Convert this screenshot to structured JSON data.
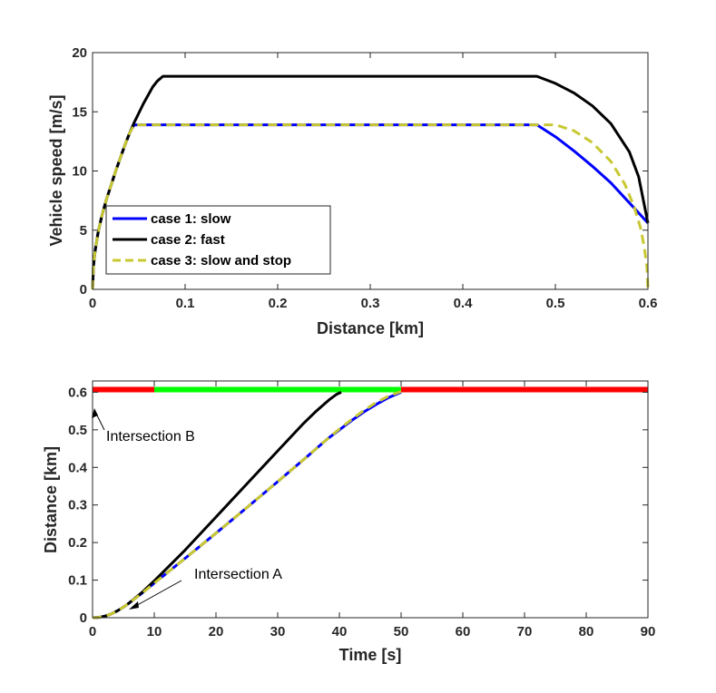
{
  "chart_data": [
    {
      "type": "line",
      "xlabel": "Distance [km]",
      "ylabel": "Vehicle speed [m/s]",
      "xlim": [
        0,
        0.6
      ],
      "ylim": [
        0,
        20
      ],
      "xticks": [
        0,
        0.1,
        0.2,
        0.3,
        0.4,
        0.5,
        0.6
      ],
      "xtick_labels": [
        "0",
        "0.1",
        "0.2",
        "0.3",
        "0.4",
        "0.5",
        "0.6"
      ],
      "yticks": [
        0,
        5,
        10,
        15,
        20
      ],
      "ytick_labels": [
        "0",
        "5",
        "10",
        "15",
        "20"
      ],
      "grid": false,
      "legend_position": "bottom-left",
      "series": [
        {
          "name": "case 1: slow",
          "color": "#0000ff",
          "style": "solid",
          "x": [
            0,
            0.001,
            0.003,
            0.006,
            0.01,
            0.015,
            0.02,
            0.025,
            0.03,
            0.035,
            0.04,
            0.045,
            0.05,
            0.1,
            0.2,
            0.3,
            0.4,
            0.48,
            0.5,
            0.52,
            0.54,
            0.56,
            0.58,
            0.6
          ],
          "y": [
            0,
            2.0,
            3.4,
            4.8,
            6.2,
            7.6,
            8.8,
            10.0,
            11.1,
            12.2,
            13.2,
            13.9,
            13.9,
            13.9,
            13.9,
            13.9,
            13.9,
            13.9,
            12.9,
            11.7,
            10.4,
            9.0,
            7.3,
            5.6
          ]
        },
        {
          "name": "case 2: fast",
          "color": "#000000",
          "style": "solid",
          "x": [
            0,
            0.001,
            0.003,
            0.006,
            0.01,
            0.015,
            0.02,
            0.025,
            0.03,
            0.035,
            0.04,
            0.045,
            0.05,
            0.055,
            0.06,
            0.065,
            0.07,
            0.076,
            0.1,
            0.2,
            0.3,
            0.4,
            0.48,
            0.5,
            0.52,
            0.54,
            0.56,
            0.58,
            0.59,
            0.6
          ],
          "y": [
            0,
            2.0,
            3.4,
            4.8,
            6.2,
            7.6,
            8.8,
            10.0,
            11.1,
            12.2,
            13.2,
            14.1,
            14.9,
            15.7,
            16.4,
            17.1,
            17.6,
            18,
            18,
            18,
            18,
            18,
            18,
            17.4,
            16.6,
            15.5,
            14.0,
            11.6,
            9.5,
            5.6
          ]
        },
        {
          "name": "case 3: slow and stop",
          "color": "#c8c832",
          "style": "dashed",
          "x": [
            0,
            0.001,
            0.003,
            0.006,
            0.01,
            0.015,
            0.02,
            0.025,
            0.03,
            0.035,
            0.04,
            0.045,
            0.05,
            0.1,
            0.2,
            0.3,
            0.4,
            0.48,
            0.5,
            0.52,
            0.54,
            0.56,
            0.575,
            0.585,
            0.592,
            0.596,
            0.599,
            0.6
          ],
          "y": [
            0,
            2.0,
            3.4,
            4.8,
            6.2,
            7.6,
            8.8,
            10.0,
            11.1,
            12.2,
            13.2,
            13.9,
            13.9,
            13.9,
            13.9,
            13.9,
            13.9,
            13.9,
            13.9,
            13.4,
            12.4,
            10.8,
            8.9,
            7.0,
            5.2,
            3.6,
            1.8,
            0
          ]
        }
      ]
    },
    {
      "type": "line",
      "xlabel": "Time [s]",
      "ylabel": "Distance [km]",
      "xlim": [
        0,
        90
      ],
      "ylim": [
        0,
        0.63
      ],
      "xticks": [
        0,
        10,
        20,
        30,
        40,
        50,
        60,
        70,
        80,
        90
      ],
      "xtick_labels": [
        "0",
        "10",
        "20",
        "30",
        "40",
        "50",
        "60",
        "70",
        "80",
        "90"
      ],
      "yticks": [
        0,
        0.1,
        0.2,
        0.3,
        0.4,
        0.5,
        0.6
      ],
      "ytick_labels": [
        "0",
        "0.1",
        "0.2",
        "0.3",
        "0.4",
        "0.5",
        "0.6"
      ],
      "grid": false,
      "series": [
        {
          "name": "case 1: slow",
          "color": "#0000ff",
          "style": "solid",
          "x": [
            0,
            1,
            2,
            3,
            4,
            5,
            6,
            8,
            10,
            15,
            20,
            25,
            30,
            35,
            38,
            40,
            42,
            44,
            46,
            48,
            50
          ],
          "y": [
            0,
            0.001,
            0.004,
            0.01,
            0.018,
            0.028,
            0.04,
            0.065,
            0.092,
            0.158,
            0.225,
            0.293,
            0.362,
            0.432,
            0.475,
            0.5,
            0.525,
            0.548,
            0.568,
            0.586,
            0.6
          ]
        },
        {
          "name": "case 2: fast",
          "color": "#000000",
          "style": "solid",
          "x": [
            0,
            1,
            2,
            3,
            4,
            5,
            6,
            8,
            10,
            15,
            20,
            25,
            30,
            34,
            36,
            37.5,
            38.5,
            39.5,
            40.3
          ],
          "y": [
            0,
            0.001,
            0.004,
            0.01,
            0.018,
            0.028,
            0.04,
            0.067,
            0.098,
            0.18,
            0.268,
            0.356,
            0.444,
            0.514,
            0.546,
            0.568,
            0.582,
            0.594,
            0.6
          ]
        },
        {
          "name": "case 3: slow and stop",
          "color": "#c8c832",
          "style": "dashed",
          "x": [
            0,
            1,
            2,
            3,
            4,
            5,
            6,
            8,
            10,
            15,
            20,
            25,
            30,
            35,
            38,
            40,
            42,
            44,
            46,
            48,
            50
          ],
          "y": [
            0,
            0.001,
            0.004,
            0.01,
            0.018,
            0.028,
            0.04,
            0.065,
            0.092,
            0.158,
            0.225,
            0.293,
            0.362,
            0.432,
            0.475,
            0.502,
            0.528,
            0.552,
            0.573,
            0.59,
            0.602
          ]
        }
      ],
      "signal_phases": [
        {
          "from": 0,
          "to": 10,
          "state": "red",
          "color": "#ff0000"
        },
        {
          "from": 10,
          "to": 50,
          "state": "green",
          "color": "#00ff00"
        },
        {
          "from": 50,
          "to": 90,
          "state": "red",
          "color": "#ff0000"
        }
      ],
      "signal_y": 0.607,
      "annotations": [
        {
          "text": "Intersection B",
          "point": [
            0,
            0.6
          ]
        },
        {
          "text": "Intersection A",
          "point": [
            6,
            0.025
          ]
        }
      ]
    }
  ]
}
